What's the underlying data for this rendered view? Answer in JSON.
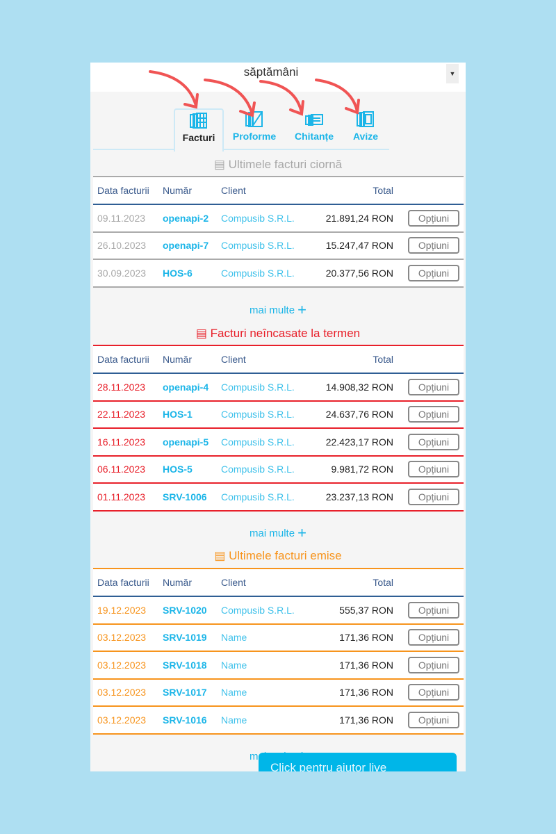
{
  "topbar": {
    "period_text": "săptămâni"
  },
  "tabs": [
    {
      "label": "Facturi",
      "icon": "invoices-icon"
    },
    {
      "label": "Proforme",
      "icon": "proforma-icon"
    },
    {
      "label": "Chitanțe",
      "icon": "receipts-icon"
    },
    {
      "label": "Avize",
      "icon": "delivery-notes-icon"
    }
  ],
  "columns": {
    "date": "Data facturii",
    "number": "Număr",
    "client": "Client",
    "total": "Total"
  },
  "more_label": "mai multe",
  "options_label": "Opțiuni",
  "sections": [
    {
      "title": "Ultimele facturi ciornă",
      "color": "#a8a8a8",
      "date_color": "#a8a8a8",
      "line_color": "#aaaaaa",
      "rows": [
        [
          "09.11.2023",
          "openapi-2",
          "Compusib S.R.L.",
          "21.891,24 RON"
        ],
        [
          "26.10.2023",
          "openapi-7",
          "Compusib S.R.L.",
          "15.247,47 RON"
        ],
        [
          "30.09.2023",
          "HOS-6",
          "Compusib S.R.L.",
          "20.377,56 RON"
        ]
      ]
    },
    {
      "title": "Facturi neîncasate la termen",
      "color": "#e8202a",
      "date_color": "#e8202a",
      "line_color": "#e8202a",
      "rows": [
        [
          "28.11.2023",
          "openapi-4",
          "Compusib S.R.L.",
          "14.908,32 RON"
        ],
        [
          "22.11.2023",
          "HOS-1",
          "Compusib S.R.L.",
          "24.637,76 RON"
        ],
        [
          "16.11.2023",
          "openapi-5",
          "Compusib S.R.L.",
          "22.423,17 RON"
        ],
        [
          "06.11.2023",
          "HOS-5",
          "Compusib S.R.L.",
          "9.981,72 RON"
        ],
        [
          "01.11.2023",
          "SRV-1006",
          "Compusib S.R.L.",
          "23.237,13 RON"
        ]
      ]
    },
    {
      "title": "Ultimele facturi emise",
      "color": "#f7941d",
      "date_color": "#f7941d",
      "line_color": "#f7941d",
      "rows": [
        [
          "19.12.2023",
          "SRV-1020",
          "Compusib S.R.L.",
          "555,37 RON"
        ],
        [
          "03.12.2023",
          "SRV-1019",
          "Name",
          "171,36 RON"
        ],
        [
          "03.12.2023",
          "SRV-1018",
          "Name",
          "171,36 RON"
        ],
        [
          "03.12.2023",
          "SRV-1017",
          "Name",
          "171,36 RON"
        ],
        [
          "03.12.2023",
          "SRV-1016",
          "Name",
          "171,36 RON"
        ]
      ]
    }
  ],
  "chat": {
    "label": "Click pentru ajutor live"
  }
}
